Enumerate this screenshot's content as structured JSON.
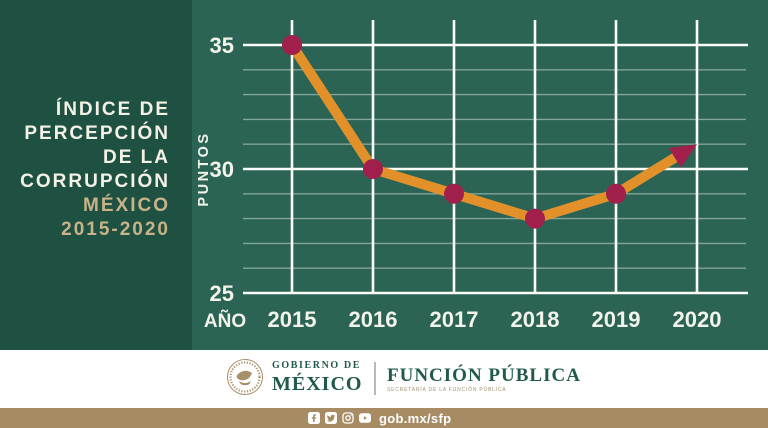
{
  "sidebar": {
    "title_lines": [
      "ÍNDICE DE",
      "PERCEPCIÓN",
      "DE LA",
      "CORRUPCIÓN"
    ],
    "highlight_lines": [
      "MÉXICO",
      "2015-2020"
    ],
    "colors": {
      "bg": "#1F5142",
      "text": "#F4F1E6",
      "highlight": "#C8B288"
    }
  },
  "chart_data": {
    "type": "line",
    "title": "Índice de Percepción de la Corrupción — México 2015-2020",
    "x": [
      2015,
      2016,
      2017,
      2018,
      2019,
      2020
    ],
    "values": [
      35,
      30,
      29,
      28,
      29,
      31
    ],
    "xlabel": "AÑO",
    "ylabel": "PUNTOS",
    "ylim": [
      25,
      36
    ],
    "yticks_major": [
      25,
      30,
      35
    ],
    "ytick_minor_step": 1,
    "grid": "horizontal major+minor, vertical line per year",
    "legend": "none",
    "last_point_style": "arrow",
    "colors": {
      "bg": "#2B6454",
      "line": "#E2912A",
      "point": "#A01F4B",
      "grid_major": "#FAFCF8",
      "grid_minor": "rgba(255,255,255,0.42)",
      "label": "#F2F3EA"
    }
  },
  "footer": {
    "brand_top": "GOBIERNO DE",
    "brand_main": "MÉXICO",
    "agency": "FUNCIÓN PÚBLICA",
    "agency_sub": "SECRETARÍA DE LA FUNCIÓN PÚBLICA",
    "text_color": "#215A4C"
  },
  "bottombar": {
    "url": "gob.mx/sfp",
    "icons": [
      "facebook-icon",
      "twitter-icon",
      "instagram-icon",
      "youtube-icon"
    ],
    "bg": "#A78C63"
  }
}
